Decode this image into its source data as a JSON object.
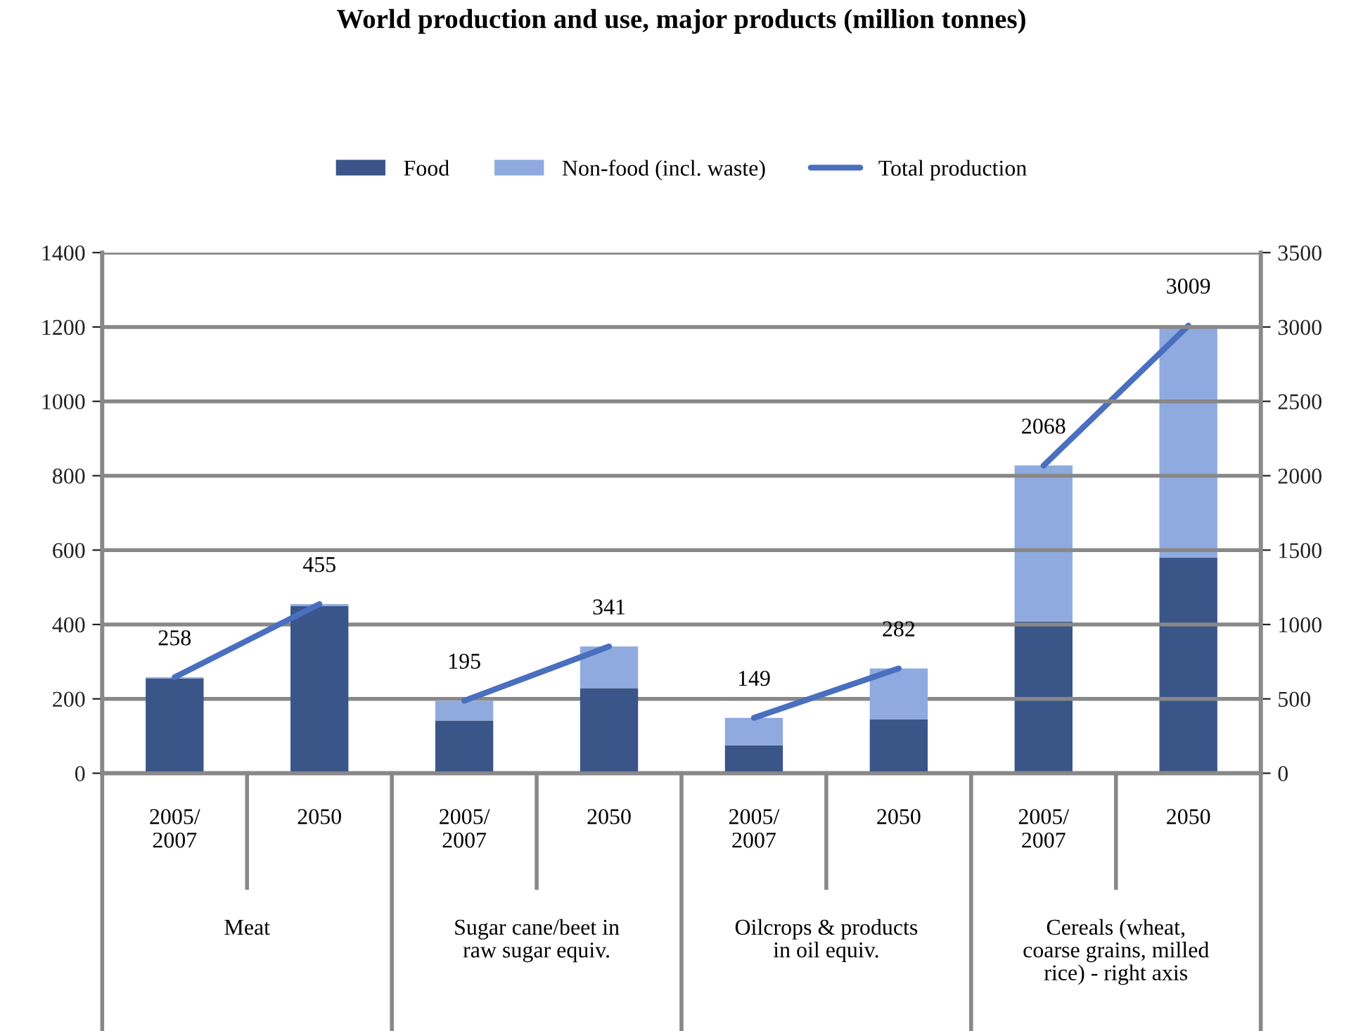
{
  "chart_data": {
    "type": "bar",
    "title": "World production and use, major products (million tonnes)",
    "categories": [
      "2005/\n2007",
      "2050",
      "2005/\n2007",
      "2050",
      "2005/\n2007",
      "2050",
      "2005/\n2007",
      "2050"
    ],
    "stacked": true,
    "series": [
      {
        "name": "Food",
        "color": "#3a5588",
        "values": [
          255,
          449,
          142,
          229,
          75,
          145,
          null,
          null
        ]
      },
      {
        "name": "Non-food (incl. waste)",
        "color": "#8eaadf",
        "values": [
          3,
          6,
          53,
          112,
          74,
          137,
          null,
          null
        ]
      },
      {
        "color": "#3a5588",
        "axis": "y2",
        "values": [
          null,
          null,
          null,
          null,
          null,
          null,
          1020,
          1450
        ]
      },
      {
        "color": "#8eaadf",
        "axis": "y2",
        "values": [
          null,
          null,
          null,
          null,
          null,
          null,
          1050,
          1560
        ]
      },
      {
        "name": "Total production",
        "type": "line",
        "color": "#4a6fbf",
        "values": [
          258,
          455,
          null,
          null,
          null,
          null,
          null,
          null
        ],
        "value_labels": [
          "258",
          "455",
          null,
          null,
          null,
          null,
          null,
          null
        ]
      },
      {
        "type": "line",
        "color": "#4a6fbf",
        "values": [
          null,
          null,
          195,
          341,
          null,
          null,
          null,
          null
        ],
        "value_labels": [
          null,
          null,
          "195",
          "341",
          null,
          null,
          null,
          null
        ]
      },
      {
        "type": "line",
        "color": "#4a6fbf",
        "values": [
          null,
          null,
          null,
          null,
          149,
          282,
          null,
          null
        ],
        "value_labels": [
          null,
          null,
          null,
          null,
          "149",
          "282",
          null,
          null
        ]
      },
      {
        "type": "line",
        "color": "#4a6fbf",
        "axis": "y2",
        "values": [
          null,
          null,
          null,
          null,
          null,
          null,
          2068,
          3009
        ],
        "value_labels": [
          null,
          null,
          null,
          null,
          null,
          null,
          "2068",
          "3009"
        ]
      }
    ],
    "ylim": [
      0,
      1400
    ],
    "yticks": [
      0,
      200,
      400,
      600,
      800,
      1000,
      1200,
      1400
    ],
    "y2lim": [
      0,
      3500
    ],
    "y2ticks": [
      0,
      500,
      1000,
      1500,
      2000,
      2500,
      3000,
      3500
    ],
    "annotations": [
      "Meat",
      "Sugar cane/beet in\nraw sugar equiv.",
      "Oilcrops & products\nin oil equiv.",
      "Cereals (wheat,\ncoarse grains, milled\nrice) - right axis"
    ],
    "grid": "y",
    "legend": "top",
    "marker": "none",
    "line_style": "solid"
  }
}
